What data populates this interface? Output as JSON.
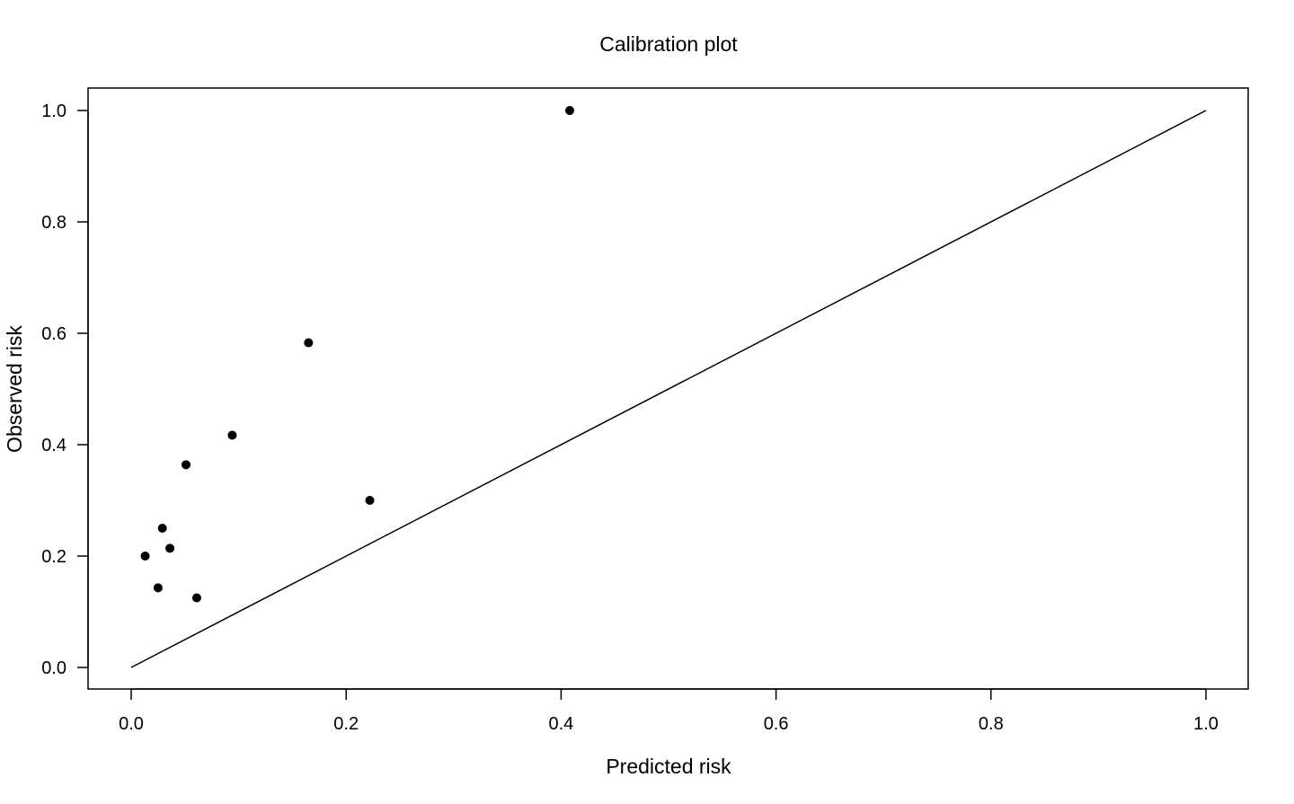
{
  "chart_data": {
    "type": "scatter",
    "title": "Calibration plot",
    "xlabel": "Predicted risk",
    "ylabel": "Observed risk",
    "xlim": [
      0.0,
      1.0
    ],
    "ylim": [
      0.0,
      1.0
    ],
    "xticks": [
      "0.0",
      "0.2",
      "0.4",
      "0.6",
      "0.8",
      "1.0"
    ],
    "yticks": [
      "0.0",
      "0.2",
      "0.4",
      "0.6",
      "0.8",
      "1.0"
    ],
    "grid": false,
    "legend": "none",
    "reference_line": {
      "type": "identity",
      "from": [
        0,
        0
      ],
      "to": [
        1,
        1
      ]
    },
    "series": [
      {
        "points": [
          {
            "x": 0.013,
            "y": 0.2
          },
          {
            "x": 0.025,
            "y": 0.143
          },
          {
            "x": 0.029,
            "y": 0.25
          },
          {
            "x": 0.036,
            "y": 0.214
          },
          {
            "x": 0.051,
            "y": 0.364
          },
          {
            "x": 0.061,
            "y": 0.125
          },
          {
            "x": 0.094,
            "y": 0.417
          },
          {
            "x": 0.165,
            "y": 0.583
          },
          {
            "x": 0.222,
            "y": 0.3
          },
          {
            "x": 0.408,
            "y": 1.0
          }
        ]
      }
    ],
    "colors": {
      "points": "#000000",
      "line": "#000000",
      "axes": "#000000"
    }
  }
}
